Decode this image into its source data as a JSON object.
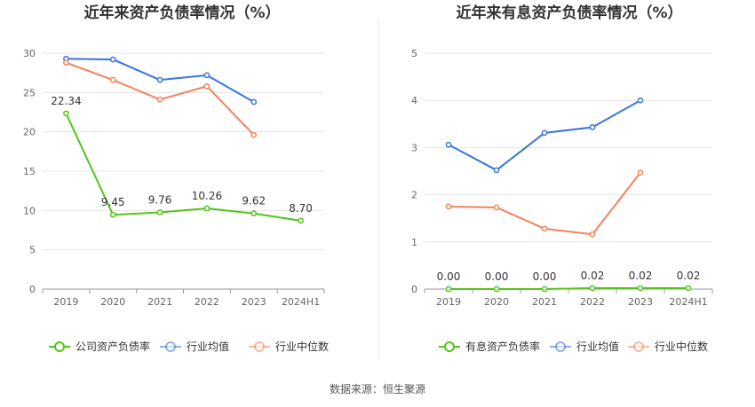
{
  "source_label": "数据来源：恒生聚源",
  "chart_data": [
    {
      "type": "line",
      "title": "近年来资产负债率情况（%）",
      "categories": [
        "2019",
        "2020",
        "2021",
        "2022",
        "2023",
        "2024H1"
      ],
      "yticks": [
        "0",
        "5",
        "10",
        "15",
        "20",
        "25",
        "30"
      ],
      "ylim": [
        0,
        30
      ],
      "grid": true,
      "legend_position": "bottom",
      "series": [
        {
          "name": "公司资产负债率",
          "color": "#52c41a",
          "values": [
            22.34,
            9.45,
            9.76,
            10.26,
            9.62,
            8.7
          ],
          "labels": [
            "22.34",
            "9.45",
            "9.76",
            "10.26",
            "9.62",
            "8.70"
          ]
        },
        {
          "name": "行业均值",
          "color": "#3a75dc",
          "values": [
            29.3,
            29.2,
            26.6,
            27.2,
            23.8,
            null
          ]
        },
        {
          "name": "行业中位数",
          "color": "#f0845c",
          "values": [
            28.8,
            26.6,
            24.1,
            25.8,
            19.6,
            null
          ]
        }
      ]
    },
    {
      "type": "line",
      "title": "近年来有息资产负债率情况（%）",
      "categories": [
        "2019",
        "2020",
        "2021",
        "2022",
        "2023",
        "2024H1"
      ],
      "yticks": [
        "0",
        "1",
        "2",
        "3",
        "4",
        "5"
      ],
      "ylim": [
        0,
        5
      ],
      "grid": true,
      "legend_position": "bottom",
      "series": [
        {
          "name": "有息资产负债率",
          "color": "#52c41a",
          "values": [
            0.0,
            0.0,
            0.0,
            0.02,
            0.02,
            0.02
          ],
          "labels": [
            "0.00",
            "0.00",
            "0.00",
            "0.02",
            "0.02",
            "0.02"
          ]
        },
        {
          "name": "行业均值",
          "color": "#3a75dc",
          "values": [
            3.06,
            2.52,
            3.31,
            3.43,
            4.0,
            null
          ]
        },
        {
          "name": "行业中位数",
          "color": "#f0845c",
          "values": [
            1.75,
            1.73,
            1.28,
            1.16,
            2.47,
            null
          ]
        }
      ]
    }
  ]
}
